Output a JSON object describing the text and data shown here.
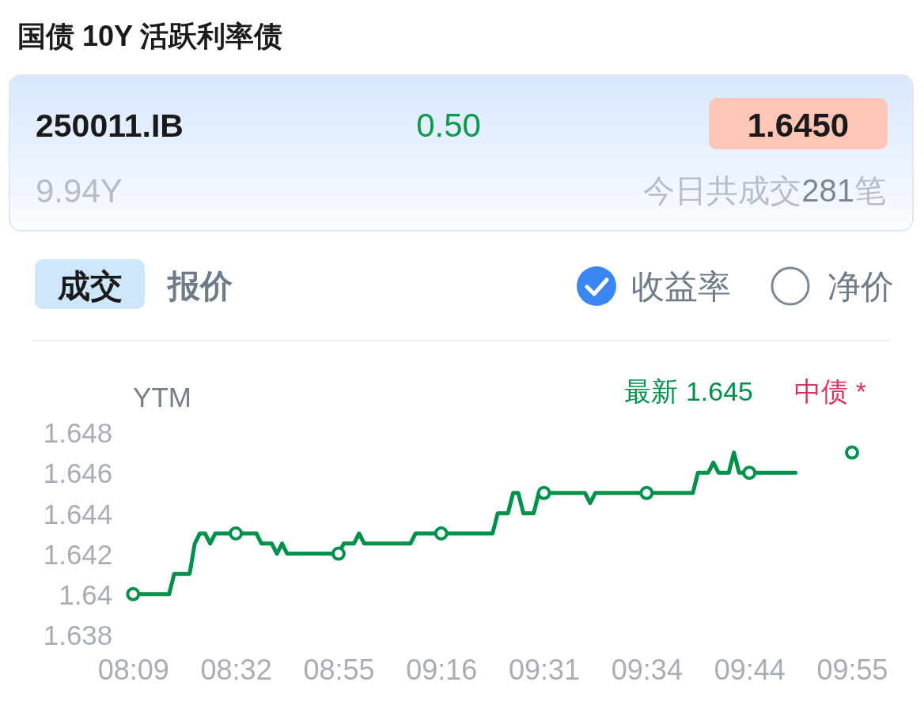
{
  "chart_data": [
    {
      "type": "other",
      "title": "国债 10Y 活跃利率债",
      "annotations": [
        "250011.IB",
        "0.50",
        "1.6450",
        "9.94Y",
        "今日共成交281笔",
        "成交",
        "报价",
        "收益率",
        "净价"
      ]
    },
    {
      "type": "line",
      "ylabel": "YTM",
      "annotations": [
        "最新 1.645",
        "中债 *"
      ],
      "categories": [
        "08:09",
        null,
        null,
        null,
        null,
        null,
        null,
        null,
        null,
        null,
        null,
        null,
        null,
        null,
        null,
        null,
        null,
        null,
        null,
        null,
        "08:32",
        null,
        null,
        null,
        null,
        null,
        null,
        null,
        null,
        null,
        null,
        null,
        null,
        null,
        null,
        null,
        null,
        null,
        null,
        null,
        "08:55",
        null,
        null,
        null,
        null,
        null,
        null,
        null,
        null,
        null,
        null,
        null,
        null,
        null,
        null,
        null,
        null,
        null,
        null,
        null,
        "09:16",
        null,
        null,
        null,
        null,
        null,
        null,
        null,
        null,
        null,
        null,
        null,
        null,
        null,
        null,
        null,
        null,
        null,
        null,
        null,
        "09:31",
        null,
        null,
        null,
        null,
        null,
        null,
        null,
        null,
        null,
        null,
        null,
        null,
        null,
        null,
        null,
        null,
        null,
        null,
        null,
        "09:34",
        null,
        null,
        null,
        null,
        null,
        null,
        null,
        null,
        null,
        null,
        null,
        null,
        null,
        null,
        null,
        null,
        null,
        null,
        null,
        "09:44",
        null,
        null,
        null,
        null,
        null,
        null,
        null,
        null,
        null,
        null,
        null,
        null,
        null,
        null,
        null,
        null,
        null,
        null,
        null,
        "09:55"
      ],
      "ylim": [
        1.638,
        1.648
      ],
      "yticks": [
        1.638,
        1.64,
        1.642,
        1.644,
        1.646,
        1.648
      ],
      "series": [
        {
          "type": "line",
          "color": "#00924a",
          "values": [
            1.64,
            1.64,
            1.64,
            1.64,
            1.64,
            1.64,
            1.64,
            1.64,
            1.641,
            1.641,
            1.641,
            1.641,
            1.6425,
            1.643,
            1.643,
            1.6425,
            1.643,
            1.643,
            1.643,
            1.643,
            1.643,
            1.643,
            1.643,
            1.643,
            1.643,
            1.6425,
            1.6425,
            1.6425,
            1.642,
            1.6425,
            1.642,
            1.642,
            1.642,
            1.642,
            1.642,
            1.642,
            1.642,
            1.642,
            1.642,
            1.642,
            1.642,
            1.6425,
            1.6425,
            1.6425,
            1.643,
            1.6425,
            1.6425,
            1.6425,
            1.6425,
            1.6425,
            1.6425,
            1.6425,
            1.6425,
            1.6425,
            1.6425,
            1.643,
            1.643,
            1.643,
            1.643,
            1.643,
            1.643,
            1.643,
            1.643,
            1.643,
            1.643,
            1.643,
            1.643,
            1.643,
            1.643,
            1.643,
            1.643,
            1.644,
            1.644,
            1.644,
            1.645,
            1.645,
            1.644,
            1.644,
            1.644,
            1.645,
            1.645,
            1.645,
            1.645,
            1.645,
            1.645,
            1.645,
            1.645,
            1.645,
            1.645,
            1.6445,
            1.645,
            1.645,
            1.645,
            1.645,
            1.645,
            1.645,
            1.645,
            1.645,
            1.645,
            1.645,
            1.645,
            1.645,
            1.645,
            1.645,
            1.645,
            1.645,
            1.645,
            1.645,
            1.645,
            1.645,
            1.646,
            1.646,
            1.646,
            1.6465,
            1.646,
            1.646,
            1.646,
            1.647,
            1.646,
            1.646,
            1.646,
            1.646,
            1.646,
            1.646,
            1.646,
            1.646,
            1.646,
            1.646,
            1.646,
            1.646,
            null,
            null,
            null,
            null,
            null,
            null,
            null,
            null,
            null,
            null,
            null
          ]
        },
        {
          "type": "scatter",
          "color": "#00924a",
          "marker": "circle",
          "x": [
            "08:09",
            "08:32",
            "08:55",
            "09:16",
            "09:31",
            "09:34",
            "09:44",
            "09:55"
          ],
          "values": [
            1.64,
            1.643,
            1.642,
            1.643,
            1.645,
            1.645,
            1.646,
            1.647
          ]
        }
      ]
    }
  ]
}
